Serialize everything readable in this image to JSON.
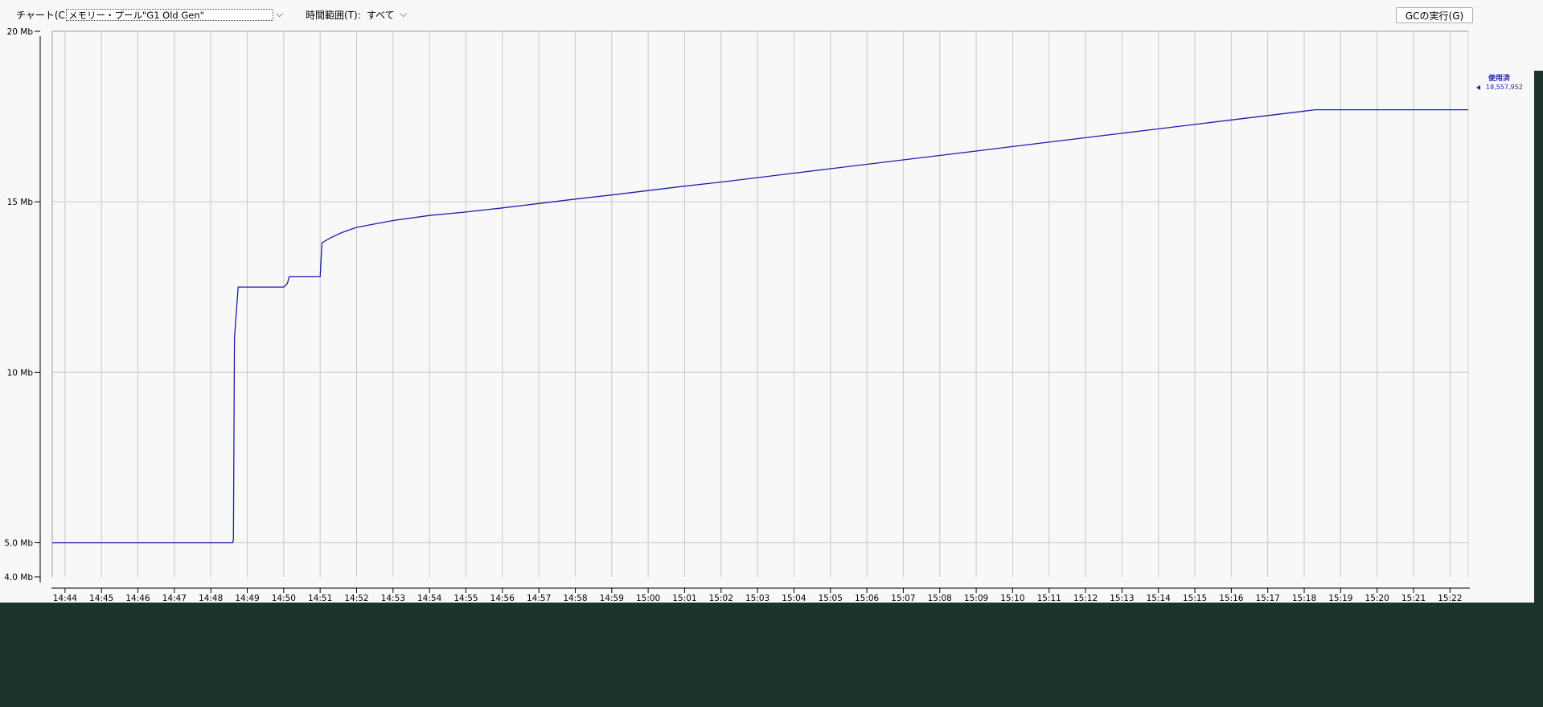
{
  "toolbar": {
    "chart_label": "チャート(C):",
    "chart_selected": "メモリー・プール\"G1 Old Gen\"",
    "chart_dropdown_icon": "chevron-down-icon",
    "range_label": "時間範囲(T):",
    "range_selected": "すべて",
    "range_dropdown_icon": "chevron-down-icon",
    "gc_button_label": "GCの実行(G)"
  },
  "legend": {
    "series_name": "使用済",
    "current_value": "18,557,952",
    "marker_icon": "triangle-left-icon"
  },
  "colors": {
    "series": "#1c1cb0",
    "panel_bg": "#f8f8f8",
    "desktop_bg": "#1b352a",
    "grid": "#c8c8c8"
  },
  "chart_data": {
    "type": "line",
    "y_unit": "Mb",
    "y_ticks": [
      {
        "value": 4.0,
        "label": "4.0 Mb"
      },
      {
        "value": 5.0,
        "label": "5.0 Mb"
      },
      {
        "value": 10,
        "label": "10 Mb"
      },
      {
        "value": 15,
        "label": "15 Mb"
      },
      {
        "value": 20,
        "label": "20 Mb"
      }
    ],
    "ylim": [
      4.0,
      20.0
    ],
    "x_ticks": [
      "14:44",
      "14:45",
      "14:46",
      "14:47",
      "14:48",
      "14:49",
      "14:50",
      "14:51",
      "14:52",
      "14:53",
      "14:54",
      "14:55",
      "14:56",
      "14:57",
      "14:58",
      "14:59",
      "15:00",
      "15:01",
      "15:02",
      "15:03",
      "15:04",
      "15:05",
      "15:06",
      "15:07",
      "15:08",
      "15:09",
      "15:10",
      "15:11",
      "15:12",
      "15:13",
      "15:14",
      "15:15",
      "15:16",
      "15:17",
      "15:18",
      "15:19",
      "15:20",
      "15:21",
      "15:22"
    ],
    "xlim_minutes_from_first_tick": [
      -0.35,
      38.5
    ],
    "grid": true,
    "legend_position": "right",
    "series": [
      {
        "name": "使用済",
        "points": [
          [
            -0.35,
            5.0
          ],
          [
            4.6,
            5.0
          ],
          [
            4.62,
            5.1
          ],
          [
            4.65,
            11.0
          ],
          [
            4.75,
            12.5
          ],
          [
            5.0,
            12.5
          ],
          [
            6.0,
            12.5
          ],
          [
            6.1,
            12.6
          ],
          [
            6.15,
            12.8
          ],
          [
            7.0,
            12.8
          ],
          [
            7.05,
            13.8
          ],
          [
            7.3,
            13.95
          ],
          [
            7.6,
            14.1
          ],
          [
            8.0,
            14.25
          ],
          [
            9.0,
            14.45
          ],
          [
            10.0,
            14.6
          ],
          [
            11.0,
            14.7
          ],
          [
            12.0,
            14.82
          ],
          [
            13.0,
            14.95
          ],
          [
            14.0,
            15.08
          ],
          [
            15.0,
            15.2
          ],
          [
            16.0,
            15.33
          ],
          [
            17.0,
            15.46
          ],
          [
            18.0,
            15.58
          ],
          [
            19.0,
            15.71
          ],
          [
            20.0,
            15.84
          ],
          [
            21.0,
            15.97
          ],
          [
            22.0,
            16.1
          ],
          [
            23.0,
            16.23
          ],
          [
            24.0,
            16.36
          ],
          [
            25.0,
            16.49
          ],
          [
            26.0,
            16.62
          ],
          [
            27.0,
            16.75
          ],
          [
            28.0,
            16.88
          ],
          [
            29.0,
            17.01
          ],
          [
            30.0,
            17.14
          ],
          [
            31.0,
            17.27
          ],
          [
            32.0,
            17.4
          ],
          [
            33.0,
            17.53
          ],
          [
            34.0,
            17.66
          ],
          [
            34.3,
            17.7
          ],
          [
            35.0,
            17.7
          ],
          [
            36.0,
            17.7
          ],
          [
            37.0,
            17.7
          ],
          [
            38.0,
            17.7
          ],
          [
            38.5,
            17.7
          ]
        ]
      }
    ]
  }
}
